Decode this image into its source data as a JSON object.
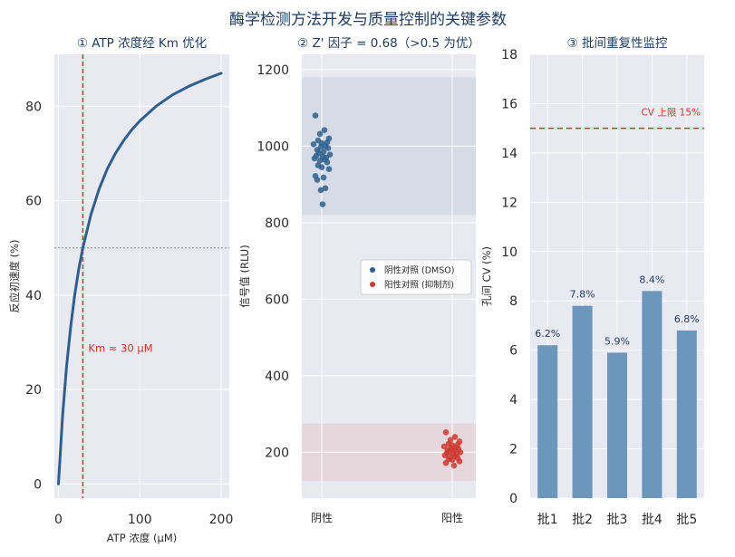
{
  "figure_title": "酶学检测方法开发与质量控制的关键参数",
  "colors": {
    "panel_bg": "#e9e9f1",
    "grid": "#ffffff",
    "blue": "#2e5f8e",
    "red": "#cc3a2e",
    "bar": "#6b97bd",
    "title": "#1d3a5f",
    "text": "#2b2b2b"
  },
  "chart_data": [
    {
      "type": "line",
      "title": "① ATP 浓度经 Km 优化",
      "xlabel": "ATP 浓度 (μM)",
      "ylabel": "反应初速度 (%)",
      "xlim": [
        -5,
        210
      ],
      "ylim": [
        -3,
        91
      ],
      "xticks": [
        0,
        100,
        200
      ],
      "yticks": [
        0,
        20,
        40,
        60,
        80
      ],
      "grid": true,
      "series": [
        {
          "x": [
            0,
            5,
            10,
            15,
            20,
            25,
            30,
            40,
            50,
            60,
            70,
            80,
            90,
            100,
            120,
            140,
            160,
            180,
            200
          ],
          "values": [
            0,
            14.3,
            25.0,
            33.3,
            40.0,
            45.5,
            50.0,
            57.1,
            62.5,
            66.7,
            70.0,
            72.7,
            75.0,
            76.9,
            80.0,
            82.4,
            84.2,
            85.7,
            87.0
          ]
        }
      ],
      "vline": {
        "x": 30,
        "label": "Km ≈ 30 μM"
      },
      "hline": {
        "y": 50
      }
    },
    {
      "type": "scatter",
      "title": "② Z' 因子 = 0.68（>0.5 为优）",
      "ylabel": "信号值 (RLU)",
      "categories": [
        "阴性",
        "阳性"
      ],
      "ylim": [
        80,
        1240
      ],
      "yticks": [
        200,
        400,
        600,
        800,
        1000,
        1200
      ],
      "grid": true,
      "legend_position": "center-right",
      "bands": [
        {
          "color": "#2e5f8e",
          "range": [
            820,
            1180
          ]
        },
        {
          "color": "#cc3a2e",
          "range": [
            125,
            275
          ]
        }
      ],
      "series": [
        {
          "name": "阴性对照 (DMSO)",
          "color": "#2e5f8e",
          "category": 0,
          "values": [
            1080,
            1042,
            1032,
            1020,
            1015,
            1010,
            1008,
            1005,
            1000,
            998,
            995,
            990,
            985,
            982,
            978,
            975,
            972,
            970,
            968,
            965,
            962,
            958,
            950,
            945,
            940,
            922,
            918,
            912,
            890,
            885,
            848
          ]
        },
        {
          "name": "阳性对照 (抑制剂)",
          "color": "#cc3a2e",
          "category": 1,
          "values": [
            252,
            240,
            232,
            228,
            222,
            220,
            218,
            215,
            212,
            210,
            208,
            206,
            205,
            203,
            200,
            198,
            196,
            195,
            192,
            190,
            188,
            185,
            182,
            180,
            176,
            172,
            165
          ]
        }
      ]
    },
    {
      "type": "bar",
      "title": "③ 批间重复性监控",
      "ylabel": "孔间 CV (%)",
      "categories": [
        "批1",
        "批2",
        "批3",
        "批4",
        "批5"
      ],
      "values": [
        6.2,
        7.8,
        5.9,
        8.4,
        6.8
      ],
      "value_labels": [
        "6.2%",
        "7.8%",
        "5.9%",
        "8.4%",
        "6.8%"
      ],
      "ylim": [
        0,
        18
      ],
      "yticks": [
        0,
        2,
        4,
        6,
        8,
        10,
        12,
        14,
        16,
        18
      ],
      "grid": true,
      "hline": {
        "y": 15,
        "label": "CV 上限 15%"
      }
    }
  ]
}
